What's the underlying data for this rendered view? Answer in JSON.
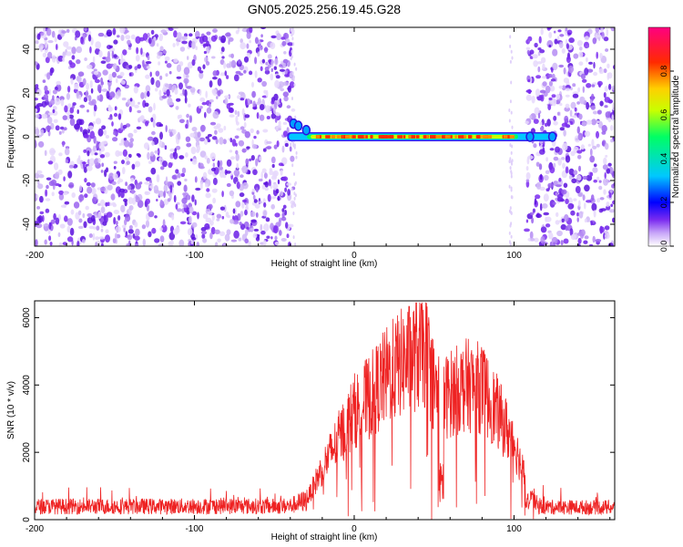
{
  "title": "GN05.2025.256.19.45.G28",
  "chart_data": [
    {
      "type": "heatmap",
      "xlabel": "Height of straight line (km)",
      "ylabel": "Frequency (Hz)",
      "xlim": [
        -200,
        163
      ],
      "ylim": [
        -50,
        50
      ],
      "xticks": [
        -200,
        -100,
        0,
        100
      ],
      "yticks": [
        -40,
        -20,
        0,
        20,
        40
      ],
      "colorbar": {
        "label": "Normalized spectral amplitude",
        "range": [
          0,
          1
        ],
        "ticks": [
          "0.0",
          "0.2",
          "0.4",
          "0.6",
          "0.8"
        ],
        "colors": [
          "#ffffff",
          "#7b2cf0",
          "#0000ff",
          "#00c8ff",
          "#00ff64",
          "#c8ff00",
          "#ffd000",
          "#ff2a00",
          "#ff0080"
        ]
      },
      "noise_regions_km": [
        [
          -200,
          -38
        ],
        [
          108,
          163
        ]
      ],
      "blank_region_km": [
        -38,
        108
      ],
      "signal_trace": {
        "x_range_km": [
          -42,
          125
        ],
        "frequency_hz": 0,
        "peak_region_km": [
          -25,
          98
        ],
        "peak_amplitude": 0.9
      }
    },
    {
      "type": "line",
      "xlabel": "Height of straight line (km)",
      "ylabel": "SNR (10 * v/v)",
      "xlim": [
        -200,
        163
      ],
      "ylim": [
        0,
        6500
      ],
      "xticks": [
        -200,
        -100,
        0,
        100
      ],
      "yticks": [
        0,
        2000,
        4000,
        6000
      ],
      "color": "#ee2222",
      "envelope": {
        "x": [
          -200,
          -160,
          -120,
          -80,
          -50,
          -40,
          -30,
          -20,
          -10,
          0,
          10,
          20,
          30,
          40,
          45,
          50,
          55,
          60,
          70,
          80,
          90,
          100,
          105,
          110,
          115,
          125,
          140,
          163
        ],
        "y": [
          450,
          450,
          450,
          460,
          450,
          470,
          650,
          1800,
          2800,
          3800,
          4300,
          5000,
          5500,
          5800,
          5900,
          4600,
          4200,
          4400,
          4700,
          4600,
          3700,
          2700,
          1800,
          900,
          450,
          420,
          420,
          420
        ]
      }
    }
  ]
}
